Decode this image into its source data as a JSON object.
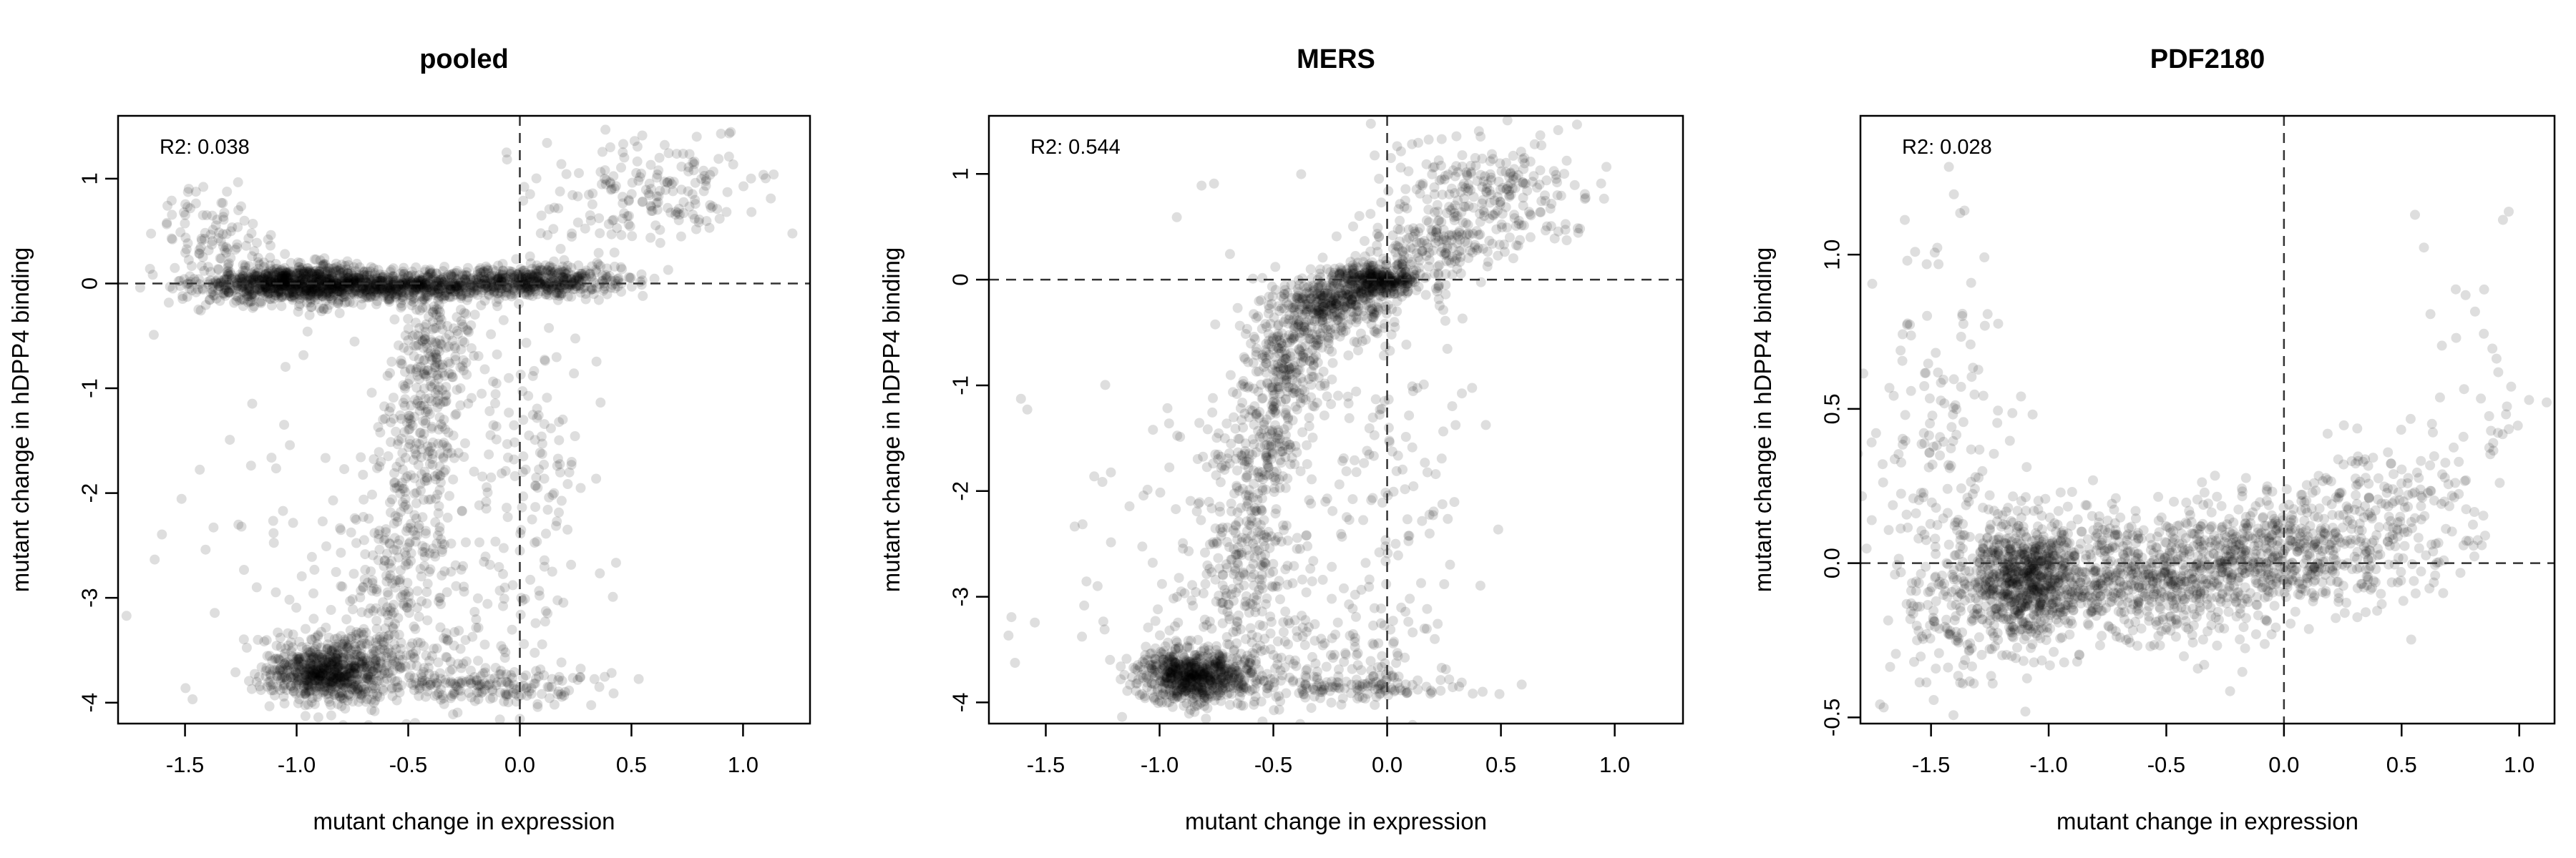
{
  "chart_data": [
    {
      "type": "scatter",
      "title": "pooled",
      "xlabel": "mutant change in expression",
      "ylabel": "mutant change in hDPP4 binding",
      "annotation": "R2: 0.038",
      "xlim": [
        -1.8,
        1.3
      ],
      "ylim": [
        -4.2,
        1.6
      ],
      "xticks": [
        -1.5,
        -1.0,
        -0.5,
        0.0,
        0.5,
        1.0
      ],
      "xtick_labels": [
        "-1.5",
        "-1.0",
        "-0.5",
        "0.0",
        "0.5",
        "1.0"
      ],
      "yticks": [
        -4,
        -3,
        -2,
        -1,
        0,
        1
      ],
      "ytick_labels": [
        "-4",
        "-3",
        "-2",
        "-1",
        "0",
        "1"
      ],
      "reference_lines": {
        "x": 0,
        "y": 0
      },
      "grid": false,
      "point_color": "#000000",
      "clusters": [
        {
          "cx": -1.0,
          "cy": 0.0,
          "sx": 0.22,
          "sy": 0.09,
          "n": 900
        },
        {
          "cx": -0.45,
          "cy": -0.02,
          "sx": 0.28,
          "sy": 0.07,
          "n": 600
        },
        {
          "cx": 0.1,
          "cy": 0.03,
          "sx": 0.18,
          "sy": 0.07,
          "n": 400
        },
        {
          "cx": -0.38,
          "cy": -0.6,
          "sx": 0.09,
          "sy": 0.3,
          "n": 180
        },
        {
          "cx": -0.45,
          "cy": -1.6,
          "sx": 0.09,
          "sy": 0.45,
          "n": 180
        },
        {
          "cx": -0.55,
          "cy": -2.7,
          "sx": 0.12,
          "sy": 0.35,
          "n": 160
        },
        {
          "cx": -0.85,
          "cy": -3.7,
          "sx": 0.14,
          "sy": 0.15,
          "n": 700
        },
        {
          "cx": -0.5,
          "cy": -3.5,
          "sx": 0.3,
          "sy": 0.35,
          "n": 200
        },
        {
          "cx": -0.1,
          "cy": -3.85,
          "sx": 0.25,
          "sy": 0.08,
          "n": 150
        },
        {
          "cx": 0.6,
          "cy": 0.85,
          "sx": 0.25,
          "sy": 0.25,
          "n": 180
        },
        {
          "cx": -1.35,
          "cy": 0.45,
          "sx": 0.15,
          "sy": 0.2,
          "n": 90
        },
        {
          "cx": 0.05,
          "cy": -1.8,
          "sx": 0.18,
          "sy": 1.0,
          "n": 160
        },
        {
          "cx": -1.2,
          "cy": -2.2,
          "sx": 0.3,
          "sy": 1.0,
          "n": 60
        }
      ]
    },
    {
      "type": "scatter",
      "title": "MERS",
      "xlabel": "mutant change in expression",
      "ylabel": "mutant change in hDPP4 binding",
      "annotation": "R2: 0.544",
      "xlim": [
        -1.75,
        1.3
      ],
      "ylim": [
        -4.2,
        1.55
      ],
      "xticks": [
        -1.5,
        -1.0,
        -0.5,
        0.0,
        0.5,
        1.0
      ],
      "xtick_labels": [
        "-1.5",
        "-1.0",
        "-0.5",
        "0.0",
        "0.5",
        "1.0"
      ],
      "yticks": [
        -4,
        -3,
        -2,
        -1,
        0,
        1
      ],
      "ytick_labels": [
        "-4",
        "-3",
        "-2",
        "-1",
        "0",
        "1"
      ],
      "reference_lines": {
        "x": 0,
        "y": 0
      },
      "grid": false,
      "point_color": "#000000",
      "clusters": [
        {
          "cx": -0.05,
          "cy": 0.0,
          "sx": 0.1,
          "sy": 0.08,
          "n": 350
        },
        {
          "cx": -0.25,
          "cy": -0.25,
          "sx": 0.12,
          "sy": 0.15,
          "n": 350
        },
        {
          "cx": -0.45,
          "cy": -0.8,
          "sx": 0.1,
          "sy": 0.3,
          "n": 250
        },
        {
          "cx": -0.55,
          "cy": -1.7,
          "sx": 0.1,
          "sy": 0.35,
          "n": 200
        },
        {
          "cx": -0.62,
          "cy": -2.7,
          "sx": 0.12,
          "sy": 0.35,
          "n": 180
        },
        {
          "cx": -0.85,
          "cy": -3.75,
          "sx": 0.13,
          "sy": 0.13,
          "n": 650
        },
        {
          "cx": -0.55,
          "cy": -3.5,
          "sx": 0.3,
          "sy": 0.3,
          "n": 200
        },
        {
          "cx": -0.1,
          "cy": -3.85,
          "sx": 0.22,
          "sy": 0.07,
          "n": 120
        },
        {
          "cx": 0.45,
          "cy": 0.8,
          "sx": 0.22,
          "sy": 0.25,
          "n": 250
        },
        {
          "cx": 0.2,
          "cy": 0.3,
          "sx": 0.15,
          "sy": 0.2,
          "n": 150
        },
        {
          "cx": 0.05,
          "cy": -1.8,
          "sx": 0.18,
          "sy": 1.0,
          "n": 150
        },
        {
          "cx": -1.0,
          "cy": -2.2,
          "sx": 0.3,
          "sy": 1.0,
          "n": 60
        }
      ]
    },
    {
      "type": "scatter",
      "title": "PDF2180",
      "xlabel": "mutant change in expression",
      "ylabel": "mutant change in hDPP4 binding",
      "annotation": "R2: 0.028",
      "xlim": [
        -1.8,
        1.15
      ],
      "ylim": [
        -0.52,
        1.45
      ],
      "xticks": [
        -1.5,
        -1.0,
        -0.5,
        0.0,
        0.5,
        1.0
      ],
      "xtick_labels": [
        "-1.5",
        "-1.0",
        "-0.5",
        "0.0",
        "0.5",
        "1.0"
      ],
      "yticks": [
        -0.5,
        0.0,
        0.5,
        1.0
      ],
      "ytick_labels": [
        "-0.5",
        "0.0",
        "0.5",
        "1.0"
      ],
      "reference_lines": {
        "x": 0,
        "y": 0
      },
      "grid": false,
      "point_color": "#000000",
      "clusters": [
        {
          "cx": -1.1,
          "cy": -0.05,
          "sx": 0.13,
          "sy": 0.1,
          "n": 700
        },
        {
          "cx": -0.6,
          "cy": -0.05,
          "sx": 0.3,
          "sy": 0.1,
          "n": 700
        },
        {
          "cx": -0.05,
          "cy": 0.03,
          "sx": 0.25,
          "sy": 0.1,
          "n": 500
        },
        {
          "cx": 0.45,
          "cy": 0.15,
          "sx": 0.2,
          "sy": 0.12,
          "n": 200
        },
        {
          "cx": -1.45,
          "cy": 0.3,
          "sx": 0.15,
          "sy": 0.25,
          "n": 150
        },
        {
          "cx": -1.4,
          "cy": -0.2,
          "sx": 0.15,
          "sy": 0.12,
          "n": 120
        },
        {
          "cx": 0.85,
          "cy": 0.6,
          "sx": 0.12,
          "sy": 0.25,
          "n": 40
        },
        {
          "cx": -1.5,
          "cy": 0.9,
          "sx": 0.1,
          "sy": 0.2,
          "n": 20
        }
      ]
    }
  ]
}
